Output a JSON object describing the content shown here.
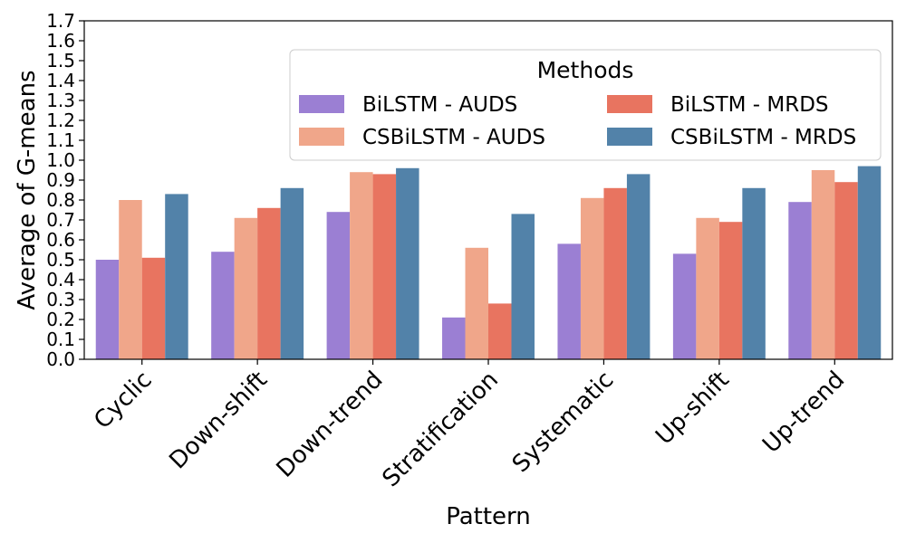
{
  "chart_data": {
    "type": "bar",
    "title": "",
    "xlabel": "Pattern",
    "ylabel": "Average of G-means",
    "ylim": [
      0,
      1.7
    ],
    "yticks": [
      "0.0",
      "0.1",
      "0.2",
      "0.3",
      "0.4",
      "0.5",
      "0.6",
      "0.7",
      "0.8",
      "0.9",
      "1.0",
      "1.1",
      "1.2",
      "1.3",
      "1.4",
      "1.5",
      "1.6",
      "1.7"
    ],
    "categories": [
      "Cyclic",
      "Down-shift",
      "Down-trend",
      "Stratification",
      "Systematic",
      "Up-shift",
      "Up-trend"
    ],
    "series": [
      {
        "name": "BiLSTM - AUDS",
        "color": "#9b7fd3",
        "values": [
          0.5,
          0.54,
          0.74,
          0.21,
          0.58,
          0.53,
          0.79
        ]
      },
      {
        "name": "CSBiLSTM - AUDS",
        "color": "#f0a68a",
        "values": [
          0.8,
          0.71,
          0.94,
          0.56,
          0.81,
          0.71,
          0.95
        ]
      },
      {
        "name": "BiLSTM - MRDS",
        "color": "#e87460",
        "values": [
          0.51,
          0.76,
          0.93,
          0.28,
          0.86,
          0.69,
          0.89
        ]
      },
      {
        "name": "CSBiLSTM - MRDS",
        "color": "#5282a9",
        "values": [
          0.83,
          0.86,
          0.96,
          0.73,
          0.93,
          0.86,
          0.97
        ]
      }
    ],
    "legend": {
      "title": "Methods",
      "placement": "upper-right",
      "columns": 2
    },
    "grid": false
  }
}
